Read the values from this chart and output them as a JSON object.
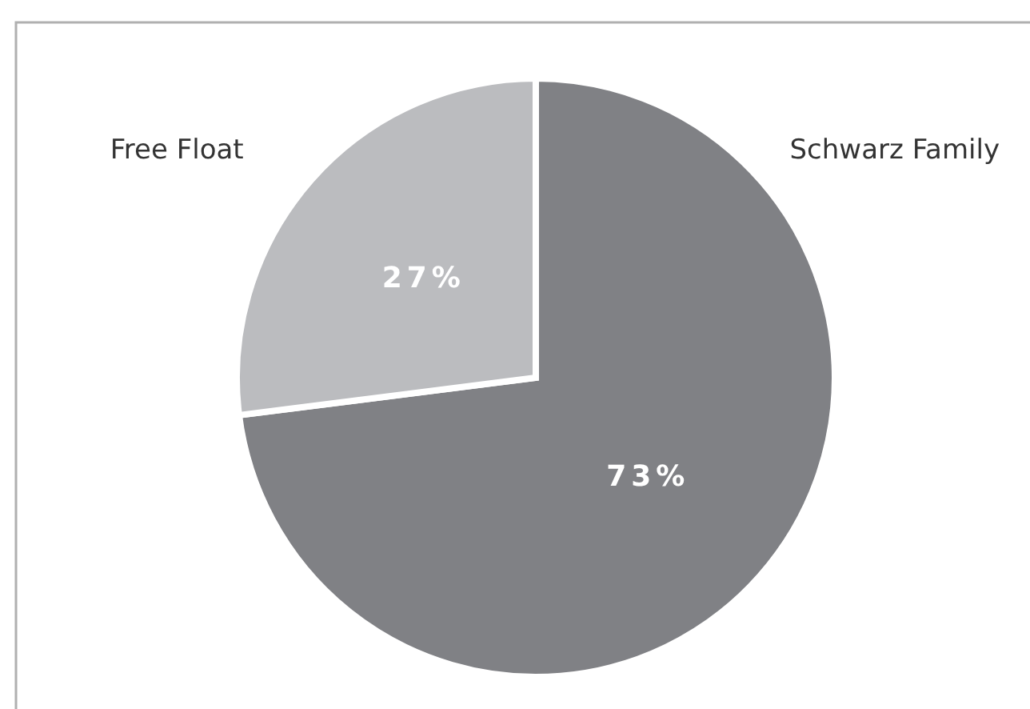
{
  "chart_data": {
    "type": "pie",
    "categories": [
      "Schwarz Family",
      "Free Float"
    ],
    "values": [
      73,
      27
    ],
    "colors": [
      "#808185",
      "#bbbcbf"
    ],
    "value_labels": [
      "73%",
      "27%"
    ],
    "legend": false
  }
}
